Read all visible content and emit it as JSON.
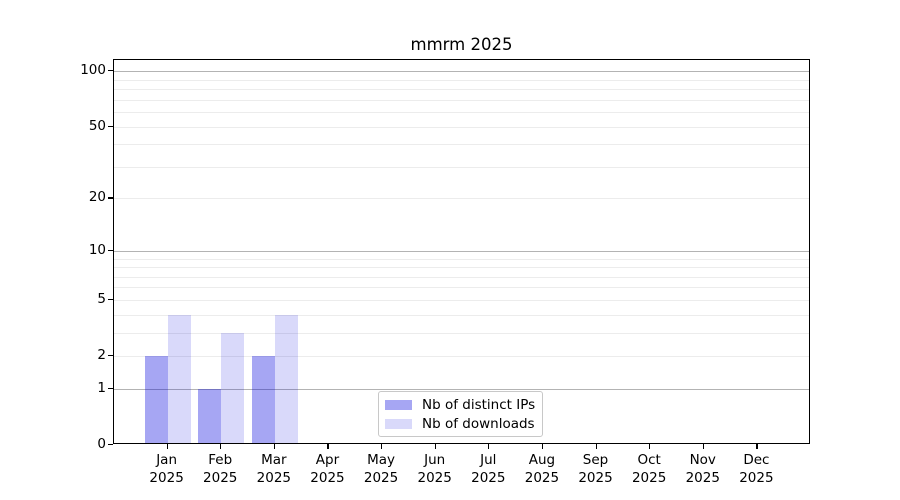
{
  "chart_data": {
    "type": "bar",
    "title": "mmrm 2025",
    "categories": [
      "Jan 2025",
      "Feb 2025",
      "Mar 2025",
      "Apr 2025",
      "May 2025",
      "Jun 2025",
      "Jul 2025",
      "Aug 2025",
      "Sep 2025",
      "Oct 2025",
      "Nov 2025",
      "Dec 2025"
    ],
    "series": [
      {
        "name": "Nb of distinct IPs",
        "color": "#0000dc",
        "alpha": 0.35,
        "values": [
          2,
          1,
          2,
          0,
          0,
          0,
          0,
          0,
          0,
          0,
          0,
          0
        ]
      },
      {
        "name": "Nb of downloads",
        "color": "#0000dc",
        "alpha": 0.15,
        "values": [
          4,
          3,
          4,
          0,
          0,
          0,
          0,
          0,
          0,
          0,
          0,
          0
        ]
      }
    ],
    "xlabel": "",
    "ylabel": "",
    "yscale": "log10(1+y)",
    "ylim": [
      0,
      115
    ],
    "y_ticks": [
      0,
      1,
      2,
      5,
      10,
      20,
      50,
      100
    ],
    "y_major_gridlines": [
      1,
      10,
      100
    ],
    "y_minor_gridlines": [
      2,
      3,
      4,
      5,
      6,
      7,
      8,
      9,
      20,
      30,
      40,
      50,
      60,
      70,
      80,
      90
    ],
    "grid": true,
    "legend_position": "lower center",
    "colors": {
      "bar_distinct_ips_rendered": "#a6a6f3",
      "bar_downloads_rendered": "#d9d9fa",
      "major_grid": "#b3b3b3",
      "minor_grid": "#ececec",
      "axis": "#000000",
      "text": "#000000",
      "legend_border": "#c8c8c8",
      "background": "#ffffff"
    }
  }
}
